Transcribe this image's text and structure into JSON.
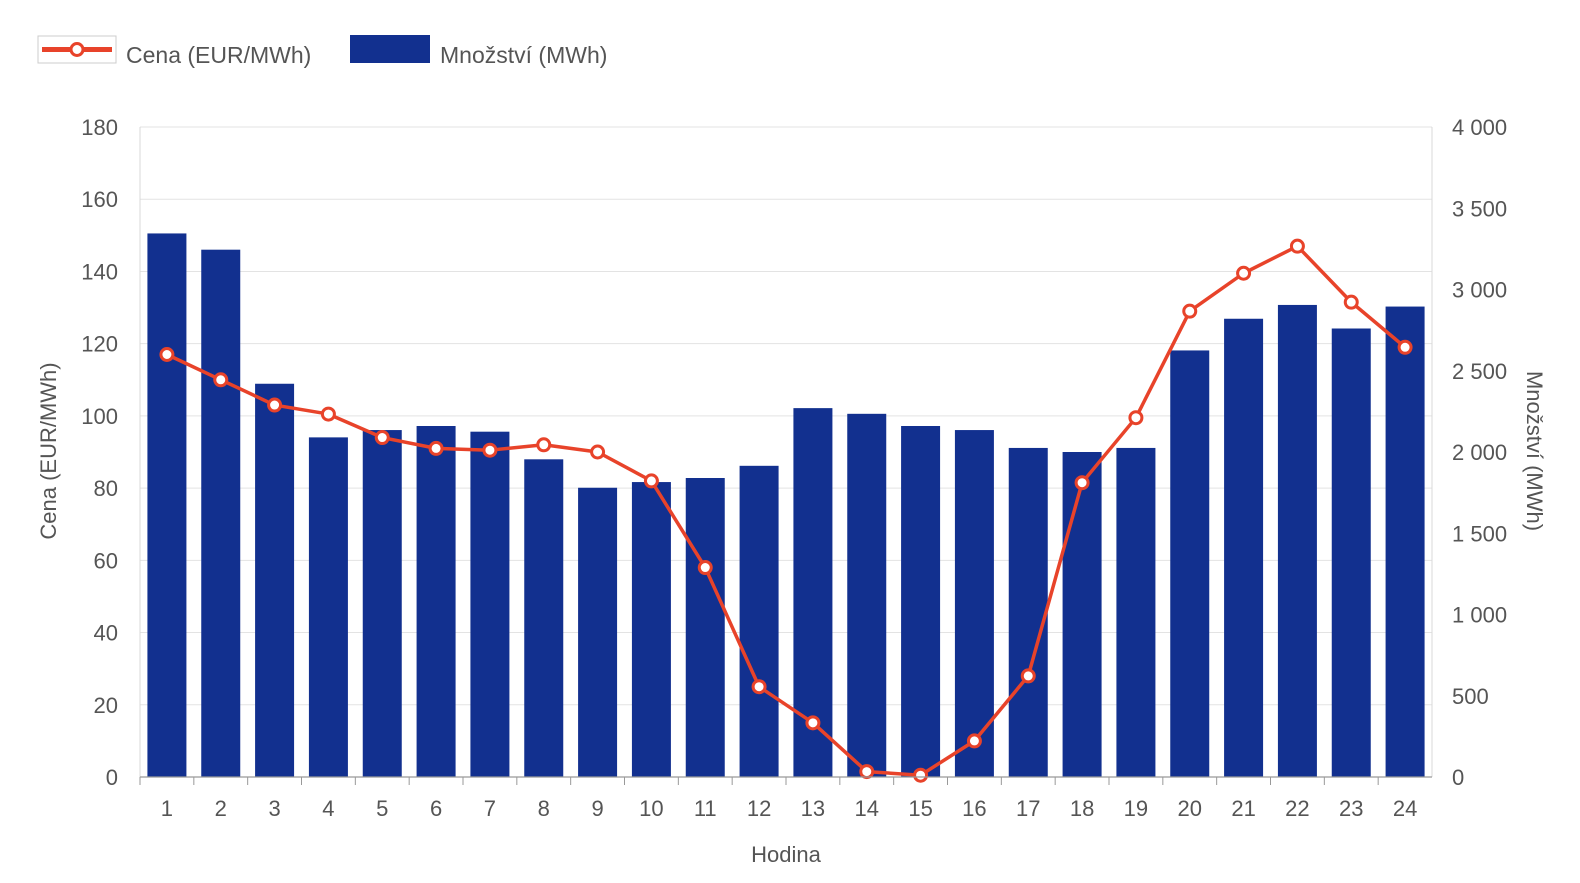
{
  "legend": {
    "price_label": "Cena (EUR/MWh)",
    "quantity_label": "Množství (MWh)"
  },
  "colors": {
    "price_line": "#e8432a",
    "quantity_bar": "#12308f",
    "grid": "#e3e3e3",
    "text": "#555555"
  },
  "chart_data": {
    "type": "bar",
    "xlabel": "Hodina",
    "ylabel_left": "Cena (EUR/MWh)",
    "ylabel_right": "Množství (MWh)",
    "categories": [
      "1",
      "2",
      "3",
      "4",
      "5",
      "6",
      "7",
      "8",
      "9",
      "10",
      "11",
      "12",
      "13",
      "14",
      "15",
      "16",
      "17",
      "18",
      "19",
      "20",
      "21",
      "22",
      "23",
      "24"
    ],
    "y_left": {
      "min": 0,
      "max": 180,
      "ticks": [
        0,
        20,
        40,
        60,
        80,
        100,
        120,
        140,
        160,
        180
      ],
      "tick_labels": [
        "0",
        "20",
        "40",
        "60",
        "80",
        "100",
        "120",
        "140",
        "160",
        "180"
      ]
    },
    "y_right": {
      "min": 0,
      "max": 4000,
      "ticks": [
        0,
        500,
        1000,
        1500,
        2000,
        2500,
        3000,
        3500,
        4000
      ],
      "tick_labels": [
        "0",
        "500",
        "1 000",
        "1 500",
        "2 000",
        "2 500",
        "3 000",
        "3 500",
        "4 000"
      ]
    },
    "grid": true,
    "legend_position": "top-left",
    "series": [
      {
        "name": "Množství (MWh)",
        "type": "bar",
        "axis": "right",
        "values": [
          3345,
          3245,
          2420,
          2090,
          2135,
          2160,
          2125,
          1955,
          1780,
          1815,
          1840,
          1915,
          2270,
          2235,
          2160,
          2135,
          2025,
          2000,
          2025,
          2625,
          2820,
          2905,
          2760,
          2895
        ]
      },
      {
        "name": "Cena (EUR/MWh)",
        "type": "line",
        "axis": "left",
        "values": [
          117,
          110,
          103,
          100.5,
          94,
          91,
          90.5,
          92,
          90,
          82,
          58,
          25,
          15,
          1.5,
          0.5,
          10,
          28,
          81.5,
          99.5,
          129,
          139.5,
          147,
          131.5,
          119
        ]
      }
    ]
  }
}
